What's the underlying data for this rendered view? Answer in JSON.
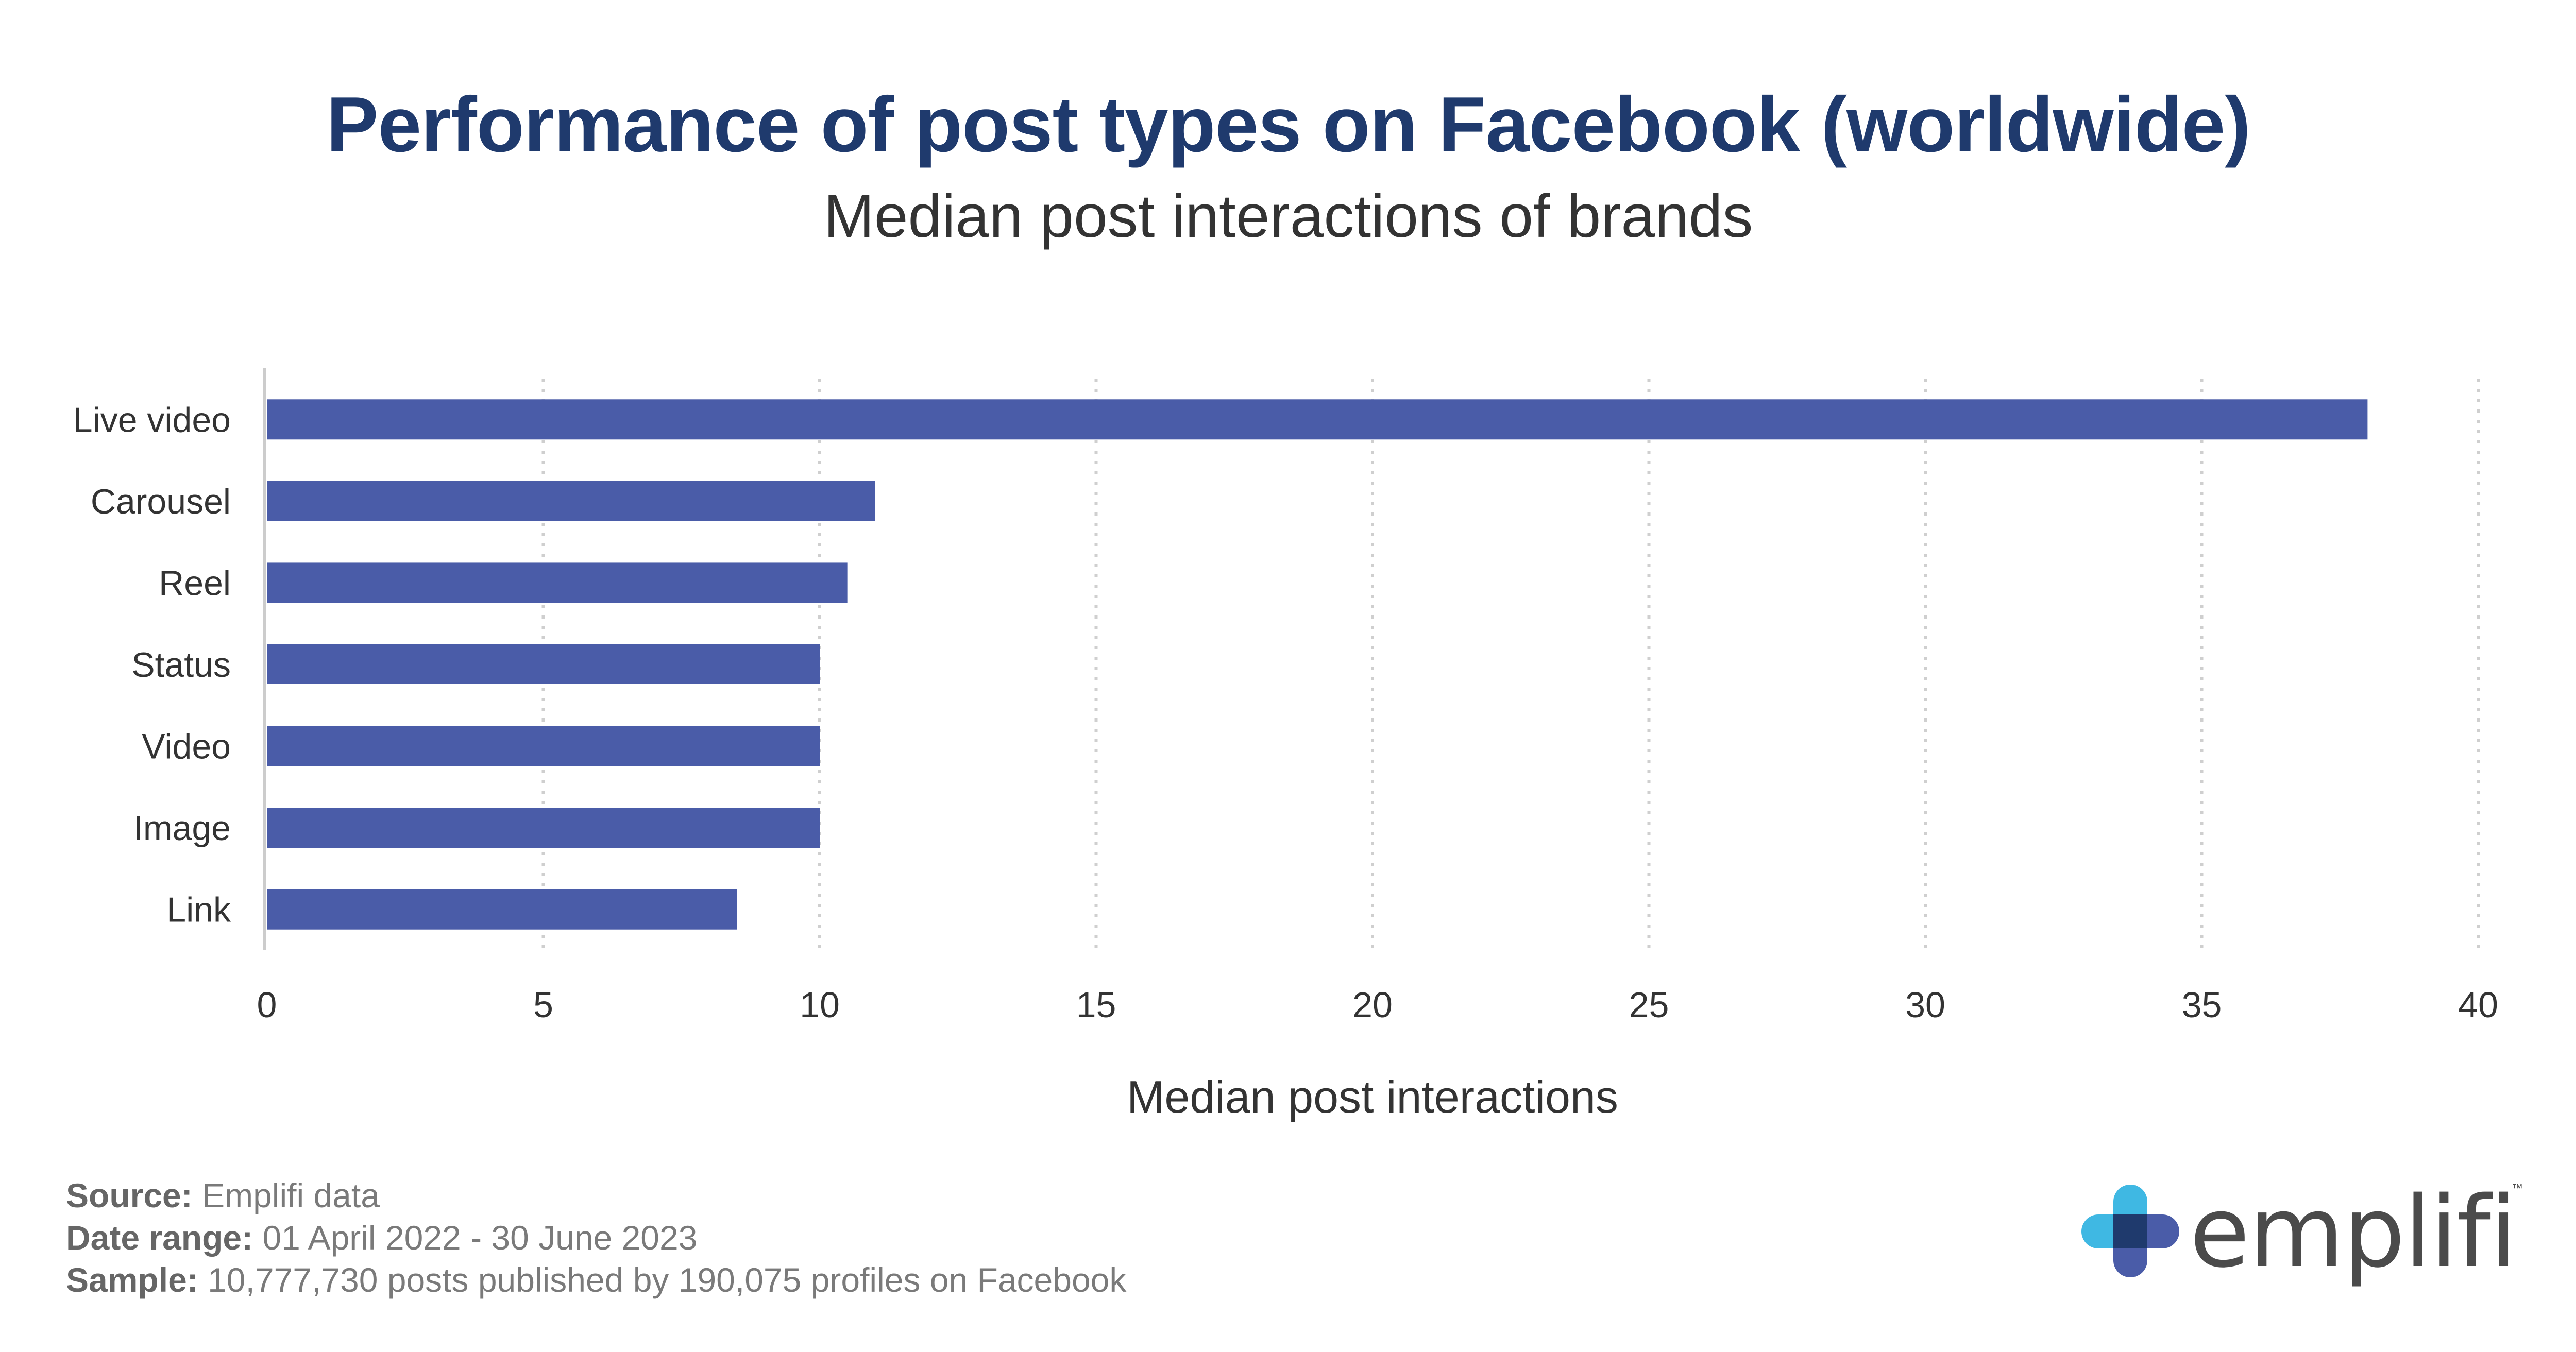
{
  "chart_data": {
    "type": "bar",
    "orientation": "horizontal",
    "title": "Performance of post types on Facebook (worldwide)",
    "subtitle": "Median post interactions of brands",
    "xlabel": "Median post interactions",
    "ylabel": "",
    "categories": [
      "Live video",
      "Carousel",
      "Reel",
      "Status",
      "Video",
      "Image",
      "Link"
    ],
    "values": [
      38,
      11,
      10.5,
      10,
      10,
      10,
      8.5
    ],
    "xlim": [
      0,
      40
    ],
    "ticks": [
      "0",
      "5",
      "10",
      "15",
      "20",
      "25",
      "30",
      "35",
      "40"
    ],
    "grid": "vertical dotted",
    "bar_color": "#4a5ca8"
  },
  "footer": {
    "source_label": "Source:",
    "source_value": " Emplifi data",
    "date_label": "Date range:",
    "date_value": " 01 April 2022 - 30 June 2023",
    "sample_label": "Sample:",
    "sample_value": " 10,777,730 posts published by 190,075 profiles on Facebook"
  },
  "logo": {
    "text": "emplifi",
    "tm": "™",
    "colors": {
      "light": "#3fb8e3",
      "dark": "#1f3a6d",
      "mid": "#4a5ca8"
    }
  }
}
